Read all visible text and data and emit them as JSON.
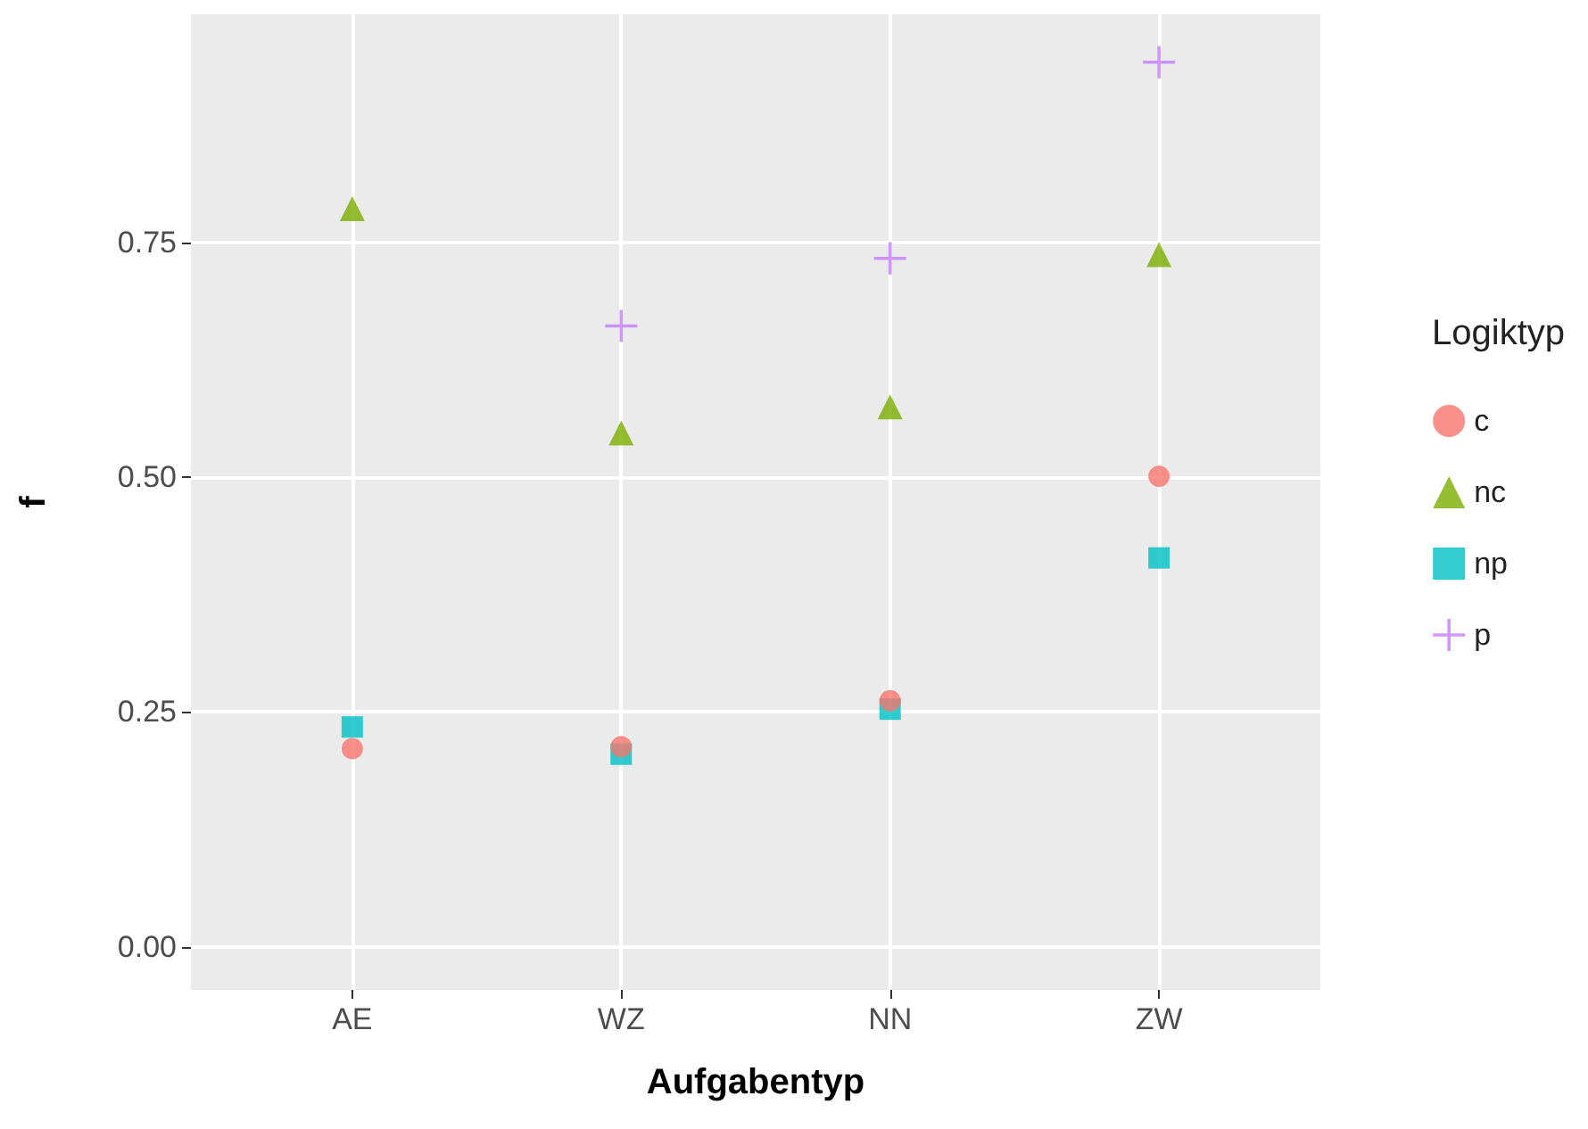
{
  "chart_data": {
    "type": "scatter",
    "xlabel": "Aufgabentyp",
    "ylabel": "f",
    "legend_title": "Logiktyp",
    "categories": [
      "AE",
      "WZ",
      "NN",
      "ZW"
    ],
    "series": [
      {
        "name": "c",
        "color": "#f8766d",
        "marker": "circle",
        "values": [
          0.211,
          0.213,
          0.262,
          0.501
        ]
      },
      {
        "name": "nc",
        "color": "#7cae00",
        "marker": "triangle",
        "values": [
          0.786,
          0.547,
          0.575,
          0.737
        ]
      },
      {
        "name": "np",
        "color": "#00bfc4",
        "marker": "square",
        "values": [
          0.234,
          0.205,
          0.253,
          0.414
        ]
      },
      {
        "name": "p",
        "color": "#c77cff",
        "marker": "cross",
        "values": [
          null,
          0.661,
          0.733,
          0.942
        ]
      }
    ],
    "ylim": [
      -0.046,
      0.993
    ],
    "yticks": [
      {
        "value": 0,
        "label": "0.00"
      },
      {
        "value": 0.25,
        "label": "0.25"
      },
      {
        "value": 0.5,
        "label": "0.50"
      },
      {
        "value": 0.75,
        "label": "0.75"
      }
    ],
    "grid": true,
    "legend": "right"
  }
}
